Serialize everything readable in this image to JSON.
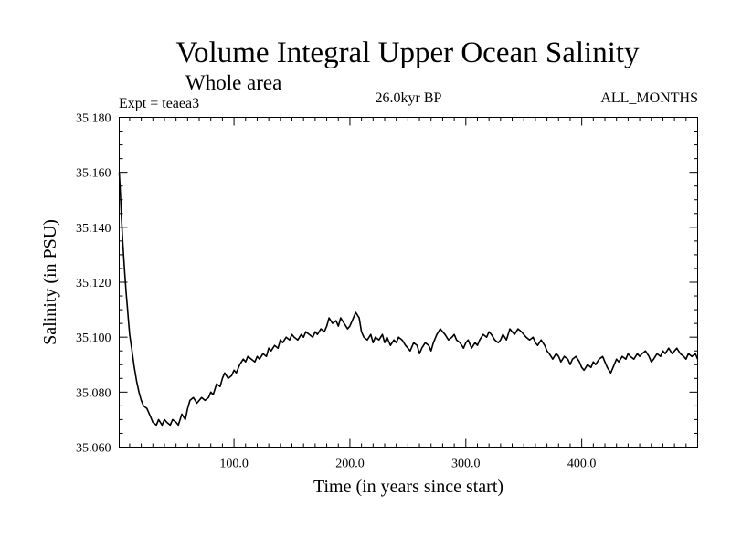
{
  "chart_data": {
    "type": "line",
    "title": "Volume Integral Upper Ocean Salinity",
    "subtitle": "Whole area",
    "expt_label": "Expt = teaea3",
    "period_label": "26.0kyr BP",
    "months_label": "ALL_MONTHS",
    "xlabel": "Time (in years since start)",
    "ylabel": "Salinity (in PSU)",
    "xlim": [
      1,
      500
    ],
    "ylim": [
      35.06,
      35.18
    ],
    "x_ticks": [
      100,
      200,
      300,
      400
    ],
    "x_tick_labels": [
      "100.0",
      "200.0",
      "300.0",
      "400.0"
    ],
    "y_ticks": [
      35.06,
      35.08,
      35.1,
      35.12,
      35.14,
      35.16,
      35.18
    ],
    "y_tick_labels": [
      "35.060",
      "35.080",
      "35.100",
      "35.120",
      "35.140",
      "35.160",
      "35.180"
    ],
    "grid": false,
    "series": [
      {
        "name": "Salinity",
        "x": [
          1,
          2,
          3,
          4,
          5,
          6,
          7,
          8,
          9,
          10,
          12,
          14,
          16,
          18,
          20,
          22,
          25,
          28,
          30,
          33,
          35,
          38,
          40,
          42,
          45,
          47,
          50,
          52,
          55,
          58,
          60,
          62,
          65,
          68,
          70,
          72,
          75,
          78,
          80,
          82,
          85,
          88,
          90,
          92,
          95,
          98,
          100,
          102,
          105,
          108,
          110,
          112,
          115,
          118,
          120,
          122,
          125,
          128,
          130,
          132,
          135,
          138,
          140,
          142,
          145,
          148,
          150,
          152,
          155,
          158,
          160,
          162,
          165,
          168,
          170,
          172,
          175,
          178,
          180,
          182,
          185,
          188,
          190,
          192,
          195,
          198,
          200,
          202,
          205,
          208,
          210,
          212,
          215,
          218,
          220,
          222,
          225,
          228,
          230,
          232,
          235,
          238,
          240,
          242,
          245,
          248,
          250,
          252,
          255,
          258,
          260,
          262,
          265,
          268,
          270,
          272,
          275,
          278,
          280,
          282,
          285,
          288,
          290,
          292,
          295,
          298,
          300,
          302,
          305,
          308,
          310,
          312,
          315,
          318,
          320,
          322,
          325,
          328,
          330,
          332,
          335,
          338,
          340,
          342,
          345,
          348,
          350,
          352,
          355,
          358,
          360,
          362,
          365,
          368,
          370,
          372,
          375,
          378,
          380,
          382,
          385,
          388,
          390,
          392,
          395,
          398,
          400,
          402,
          405,
          408,
          410,
          412,
          415,
          418,
          420,
          422,
          425,
          428,
          430,
          432,
          435,
          438,
          440,
          442,
          445,
          448,
          450,
          452,
          455,
          458,
          460,
          462,
          465,
          468,
          470,
          472,
          475,
          478,
          480,
          482,
          485,
          488,
          490,
          492,
          495,
          498,
          500
        ],
        "values": [
          35.16,
          35.152,
          35.143,
          35.135,
          35.128,
          35.122,
          35.116,
          35.111,
          35.106,
          35.101,
          35.095,
          35.089,
          35.084,
          35.08,
          35.077,
          35.075,
          35.074,
          35.071,
          35.069,
          35.068,
          35.07,
          35.068,
          35.07,
          35.069,
          35.068,
          35.07,
          35.069,
          35.068,
          35.072,
          35.07,
          35.074,
          35.077,
          35.078,
          35.076,
          35.077,
          35.078,
          35.077,
          35.078,
          35.08,
          35.079,
          35.083,
          35.082,
          35.085,
          35.087,
          35.085,
          35.086,
          35.088,
          35.087,
          35.09,
          35.092,
          35.091,
          35.093,
          35.092,
          35.091,
          35.093,
          35.092,
          35.094,
          35.093,
          35.096,
          35.095,
          35.097,
          35.096,
          35.099,
          35.098,
          35.1,
          35.099,
          35.101,
          35.1,
          35.099,
          35.101,
          35.1,
          35.102,
          35.101,
          35.1,
          35.102,
          35.101,
          35.103,
          35.102,
          35.104,
          35.107,
          35.105,
          35.106,
          35.104,
          35.107,
          35.105,
          35.103,
          35.104,
          35.106,
          35.109,
          35.107,
          35.102,
          35.1,
          35.099,
          35.101,
          35.098,
          35.1,
          35.099,
          35.101,
          35.098,
          35.1,
          35.097,
          35.099,
          35.098,
          35.1,
          35.099,
          35.097,
          35.096,
          35.095,
          35.098,
          35.097,
          35.094,
          35.096,
          35.098,
          35.097,
          35.095,
          35.098,
          35.101,
          35.103,
          35.102,
          35.101,
          35.099,
          35.1,
          35.101,
          35.099,
          35.098,
          35.096,
          35.098,
          35.099,
          35.096,
          35.098,
          35.097,
          35.099,
          35.101,
          35.1,
          35.102,
          35.101,
          35.099,
          35.098,
          35.099,
          35.101,
          35.099,
          35.103,
          35.102,
          35.101,
          35.103,
          35.102,
          35.101,
          35.1,
          35.099,
          35.1,
          35.098,
          35.097,
          35.099,
          35.097,
          35.095,
          35.094,
          35.092,
          35.094,
          35.093,
          35.091,
          35.093,
          35.092,
          35.09,
          35.092,
          35.093,
          35.091,
          35.089,
          35.088,
          35.09,
          35.089,
          35.091,
          35.09,
          35.092,
          35.093,
          35.091,
          35.089,
          35.087,
          35.09,
          35.092,
          35.091,
          35.093,
          35.092,
          35.094,
          35.093,
          35.092,
          35.094,
          35.093,
          35.094,
          35.095,
          35.093,
          35.091,
          35.092,
          35.094,
          35.093,
          35.095,
          35.094,
          35.096,
          35.094,
          35.095,
          35.096,
          35.094,
          35.093,
          35.092,
          35.094,
          35.093,
          35.094,
          35.092
        ]
      }
    ]
  }
}
